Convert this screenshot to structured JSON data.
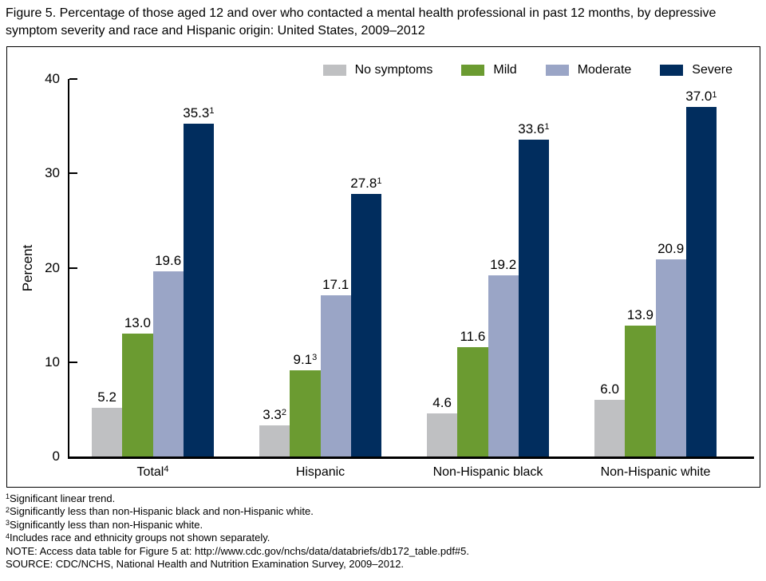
{
  "title": "Figure 5. Percentage of those aged 12 and over who contacted a mental health professional in past 12 months, by depressive symptom severity and race and Hispanic origin: United States, 2009–2012",
  "chart_data": {
    "type": "bar",
    "title": "Percentage of those aged 12 and over who contacted a mental health professional in past 12 months, by depressive symptom severity and race and Hispanic origin: United States, 2009–2012",
    "ylabel": "Percent",
    "ylim": [
      0,
      40
    ],
    "yticks": [
      0,
      10,
      20,
      30,
      40
    ],
    "grid": false,
    "legend_position": "top-right",
    "categories": [
      {
        "label": "Total",
        "sup": "4"
      },
      {
        "label": "Hispanic",
        "sup": ""
      },
      {
        "label": "Non-Hispanic black",
        "sup": ""
      },
      {
        "label": "Non-Hispanic white",
        "sup": ""
      }
    ],
    "series": [
      {
        "name": "No symptoms",
        "color": "#bfc0c2",
        "points": [
          {
            "value": 5.2,
            "label": "5.2",
            "sup": ""
          },
          {
            "value": 3.3,
            "label": "3.3",
            "sup": "2"
          },
          {
            "value": 4.6,
            "label": "4.6",
            "sup": ""
          },
          {
            "value": 6.0,
            "label": "6.0",
            "sup": ""
          }
        ]
      },
      {
        "name": "Mild",
        "color": "#6b9b31",
        "points": [
          {
            "value": 13.0,
            "label": "13.0",
            "sup": ""
          },
          {
            "value": 9.1,
            "label": "9.1",
            "sup": "3"
          },
          {
            "value": 11.6,
            "label": "11.6",
            "sup": ""
          },
          {
            "value": 13.9,
            "label": "13.9",
            "sup": ""
          }
        ]
      },
      {
        "name": "Moderate",
        "color": "#9aa5c6",
        "points": [
          {
            "value": 19.6,
            "label": "19.6",
            "sup": ""
          },
          {
            "value": 17.1,
            "label": "17.1",
            "sup": ""
          },
          {
            "value": 19.2,
            "label": "19.2",
            "sup": ""
          },
          {
            "value": 20.9,
            "label": "20.9",
            "sup": ""
          }
        ]
      },
      {
        "name": "Severe",
        "color": "#012d5e",
        "points": [
          {
            "value": 35.3,
            "label": "35.3",
            "sup": "1"
          },
          {
            "value": 27.8,
            "label": "27.8",
            "sup": "1"
          },
          {
            "value": 33.6,
            "label": "33.6",
            "sup": "1"
          },
          {
            "value": 37.0,
            "label": "37.0",
            "sup": "1"
          }
        ]
      }
    ]
  },
  "footnotes": [
    {
      "sup": "1",
      "text": "Significant linear trend."
    },
    {
      "sup": "2",
      "text": "Significantly less than non-Hispanic black and non-Hispanic white."
    },
    {
      "sup": "3",
      "text": "Significantly less than non-Hispanic white."
    },
    {
      "sup": "4",
      "text": "Includes race and ethnicity groups not shown separately."
    },
    {
      "sup": "",
      "text": "NOTE: Access data table for Figure 5 at: http://www.cdc.gov/nchs/data/databriefs/db172_table.pdf#5."
    },
    {
      "sup": "",
      "text": "SOURCE: CDC/NCHS, National Health and Nutrition Examination Survey, 2009–2012."
    }
  ]
}
